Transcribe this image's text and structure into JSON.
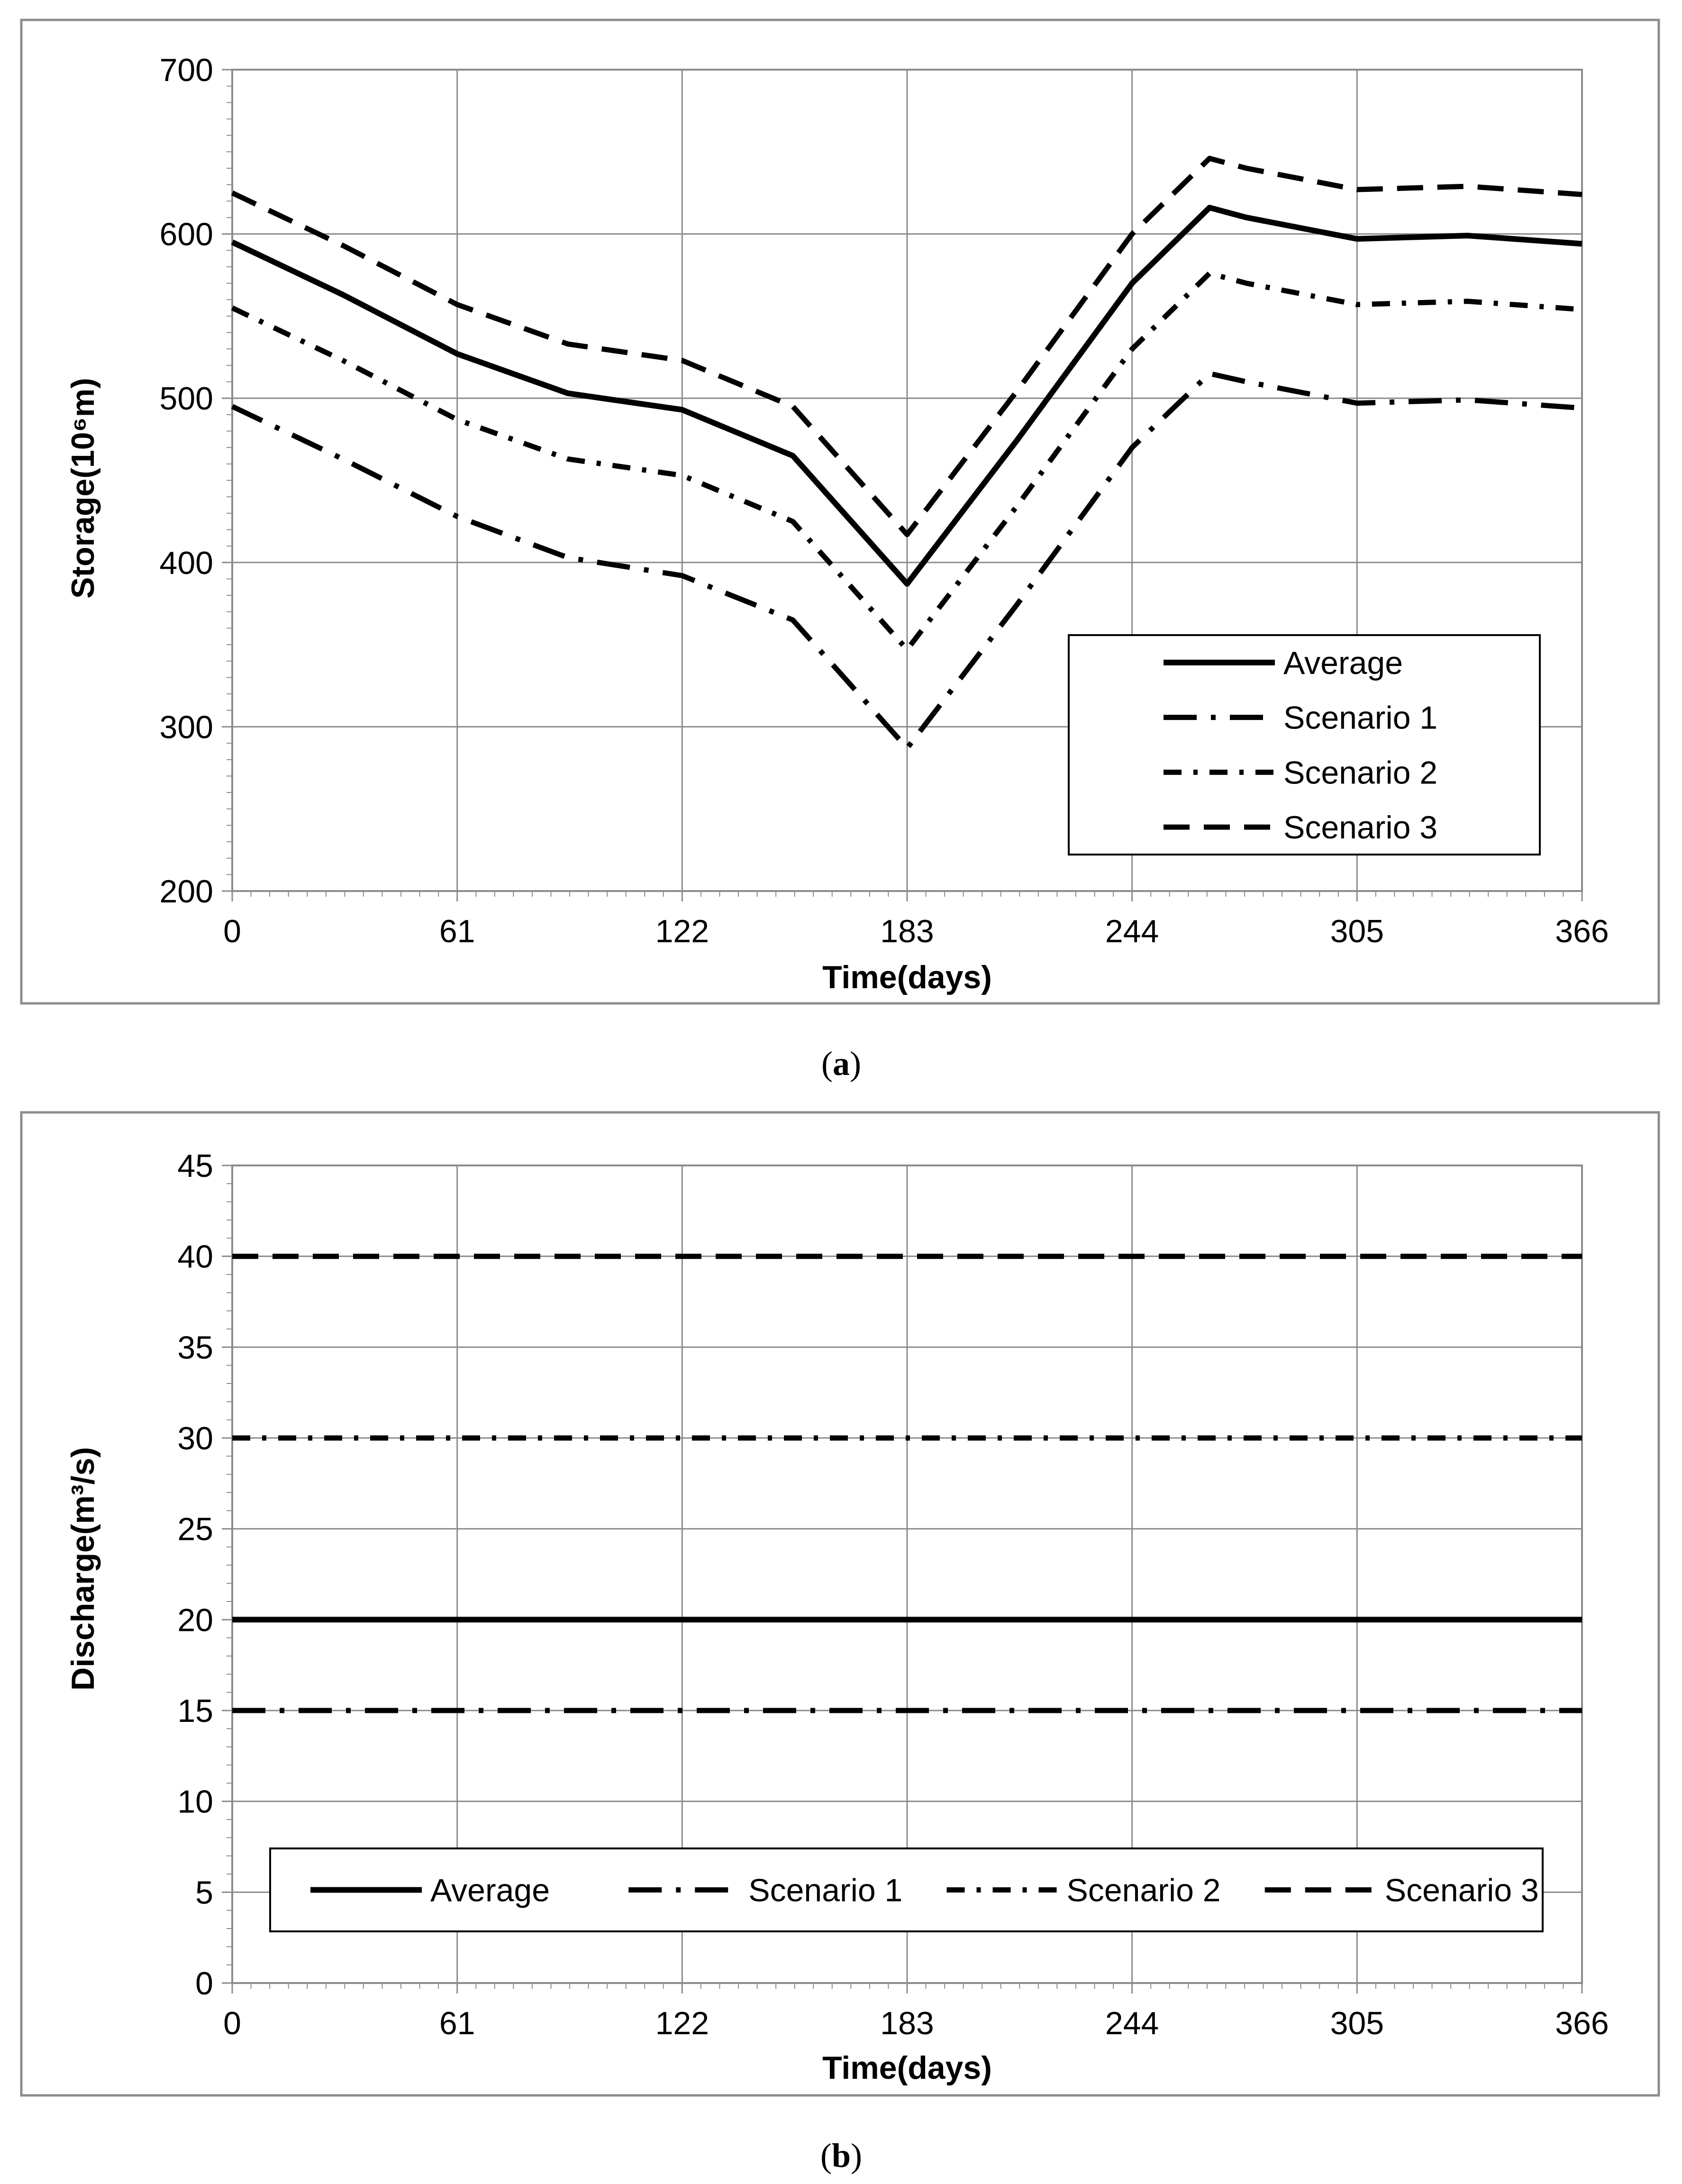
{
  "chart_data": [
    {
      "id": "a",
      "type": "line",
      "caption": {
        "open": "(",
        "letter": "a",
        "close": ")"
      },
      "xlabel": "Time(days)",
      "ylabel": "Storage(10⁶m)",
      "xlim": [
        0,
        366
      ],
      "ylim": [
        200,
        700
      ],
      "xticks": [
        0,
        61,
        122,
        183,
        244,
        305,
        366
      ],
      "yticks": [
        200,
        300,
        400,
        500,
        600,
        700
      ],
      "grid": true,
      "legend_position": "bottom-right",
      "legend_layout": "vertical",
      "series": [
        {
          "name": "Average",
          "style": "solid",
          "x": [
            0,
            30,
            61,
            91,
            122,
            152,
            183,
            213,
            244,
            265,
            275,
            305,
            335,
            366
          ],
          "y": [
            595,
            563,
            527,
            503,
            493,
            465,
            387,
            475,
            570,
            616,
            610,
            597,
            599,
            594
          ]
        },
        {
          "name": "Scenario 1",
          "style": "longdash-dot",
          "x": [
            0,
            30,
            61,
            91,
            122,
            152,
            183,
            213,
            244,
            265,
            275,
            305,
            335,
            366
          ],
          "y": [
            495,
            463,
            428,
            403,
            392,
            365,
            287,
            375,
            470,
            515,
            510,
            497,
            499,
            494
          ]
        },
        {
          "name": "Scenario 2",
          "style": "dash-dot",
          "x": [
            0,
            30,
            61,
            91,
            122,
            152,
            183,
            213,
            244,
            265,
            275,
            305,
            335,
            366
          ],
          "y": [
            555,
            523,
            487,
            463,
            453,
            425,
            347,
            435,
            530,
            576,
            570,
            557,
            559,
            554
          ]
        },
        {
          "name": "Scenario 3",
          "style": "dashed",
          "x": [
            0,
            30,
            61,
            91,
            122,
            152,
            183,
            213,
            244,
            265,
            275,
            305,
            335,
            366
          ],
          "y": [
            625,
            593,
            557,
            533,
            523,
            495,
            417,
            505,
            600,
            646,
            640,
            627,
            629,
            624
          ]
        }
      ]
    },
    {
      "id": "b",
      "type": "line",
      "caption": {
        "open": "(",
        "letter": "b",
        "close": ")"
      },
      "xlabel": "Time(days)",
      "ylabel": "Discharge(m³/s)",
      "xlim": [
        0,
        366
      ],
      "ylim": [
        0,
        45
      ],
      "xticks": [
        0,
        61,
        122,
        183,
        244,
        305,
        366
      ],
      "yticks": [
        0,
        5,
        10,
        15,
        20,
        25,
        30,
        35,
        40,
        45
      ],
      "grid": true,
      "legend_position": "bottom",
      "legend_layout": "horizontal",
      "series": [
        {
          "name": "Average",
          "style": "solid",
          "x": [
            0,
            366
          ],
          "y": [
            20,
            20
          ]
        },
        {
          "name": "Scenario 1",
          "style": "longdash-dot",
          "x": [
            0,
            366
          ],
          "y": [
            15,
            15
          ]
        },
        {
          "name": "Scenario 2",
          "style": "dash-dot",
          "x": [
            0,
            366
          ],
          "y": [
            30,
            30
          ]
        },
        {
          "name": "Scenario 3",
          "style": "dashed",
          "x": [
            0,
            366
          ],
          "y": [
            40,
            40
          ]
        }
      ]
    }
  ]
}
